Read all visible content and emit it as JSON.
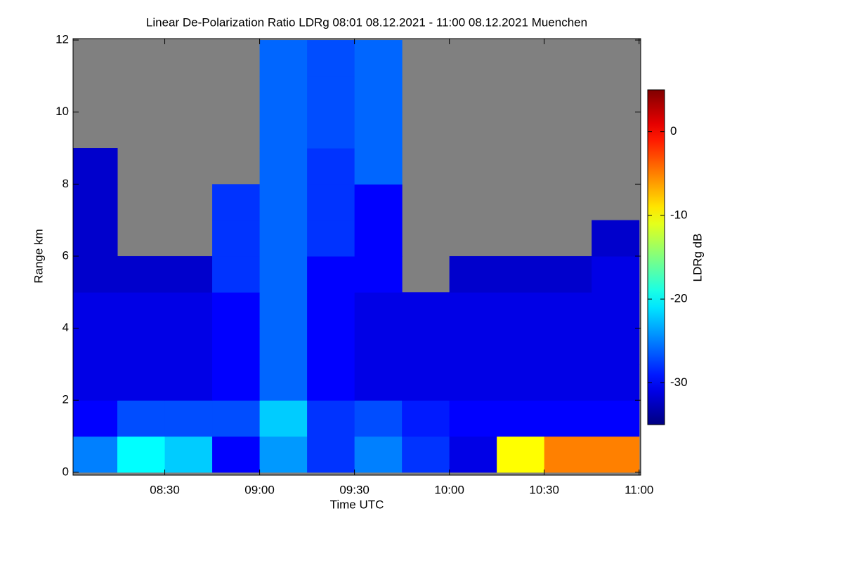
{
  "chart_data": {
    "type": "heatmap",
    "title": "Linear De-Polarization Ratio LDRg   08:01 08.12.2021 - 11:00 08.12.2021 Muenchen",
    "x_label": "Time UTC",
    "y_label": "Range km",
    "xbins": [
      481,
      495,
      510,
      525,
      540,
      555,
      570,
      585,
      600,
      615,
      630,
      645,
      660
    ],
    "ybins": [
      0,
      1,
      2,
      3,
      4,
      5,
      6,
      7,
      8,
      9,
      10,
      11,
      12
    ],
    "z": [
      [
        -25,
        -20,
        -22,
        -30,
        -24,
        -28,
        -25,
        -28,
        -31,
        -10,
        -5,
        -5
      ],
      [
        -30,
        -27,
        -27,
        -27,
        -22,
        -28,
        -27,
        -29,
        -30,
        -30,
        -30,
        -30
      ],
      [
        -31,
        -31,
        -31,
        -30,
        -26,
        -30,
        -31,
        -31,
        -31,
        -31,
        -31,
        -31
      ],
      [
        -31,
        -31,
        -31,
        -30,
        -26,
        -30,
        -31,
        -31,
        -31,
        -31,
        -31,
        -31
      ],
      [
        -31,
        -31,
        -31,
        -30,
        -26,
        -30,
        -31,
        -31,
        -31,
        -31,
        -31,
        -31
      ],
      [
        -32,
        -32,
        -32,
        -28,
        -26,
        -30,
        -30,
        null,
        -32,
        -32,
        -32,
        -31
      ],
      [
        -32,
        null,
        null,
        -28,
        -26,
        -28,
        -30,
        null,
        null,
        null,
        null,
        -32
      ],
      [
        -32,
        null,
        null,
        -28,
        -26,
        -28,
        -30,
        null,
        null,
        null,
        null,
        null
      ],
      [
        -32,
        null,
        null,
        null,
        -26,
        -28,
        -26,
        null,
        null,
        null,
        null,
        null
      ],
      [
        null,
        null,
        null,
        null,
        -26,
        -27,
        -26,
        null,
        null,
        null,
        null,
        null
      ],
      [
        null,
        null,
        null,
        null,
        -26,
        -27,
        -26,
        null,
        null,
        null,
        null,
        null
      ],
      [
        null,
        null,
        null,
        null,
        -26,
        -27,
        -26,
        null,
        null,
        null,
        null,
        null
      ]
    ],
    "xlim": [
      481,
      660.5
    ],
    "xticks": [
      {
        "value": 510,
        "label": "08:30"
      },
      {
        "value": 540,
        "label": "09:00"
      },
      {
        "value": 570,
        "label": "09:30"
      },
      {
        "value": 600,
        "label": "10:00"
      },
      {
        "value": 630,
        "label": "10:30"
      },
      {
        "value": 660,
        "label": "11:00"
      }
    ],
    "ylim": [
      -0.08,
      12.04
    ],
    "yticks": [
      0,
      2,
      4,
      6,
      8,
      10,
      12
    ],
    "missing_color": "#808080",
    "colormap": "jet",
    "colorbar": {
      "label": "LDRg dB",
      "lim": [
        -35,
        5
      ],
      "ticks": [
        0,
        -10,
        -20,
        -30
      ]
    }
  }
}
